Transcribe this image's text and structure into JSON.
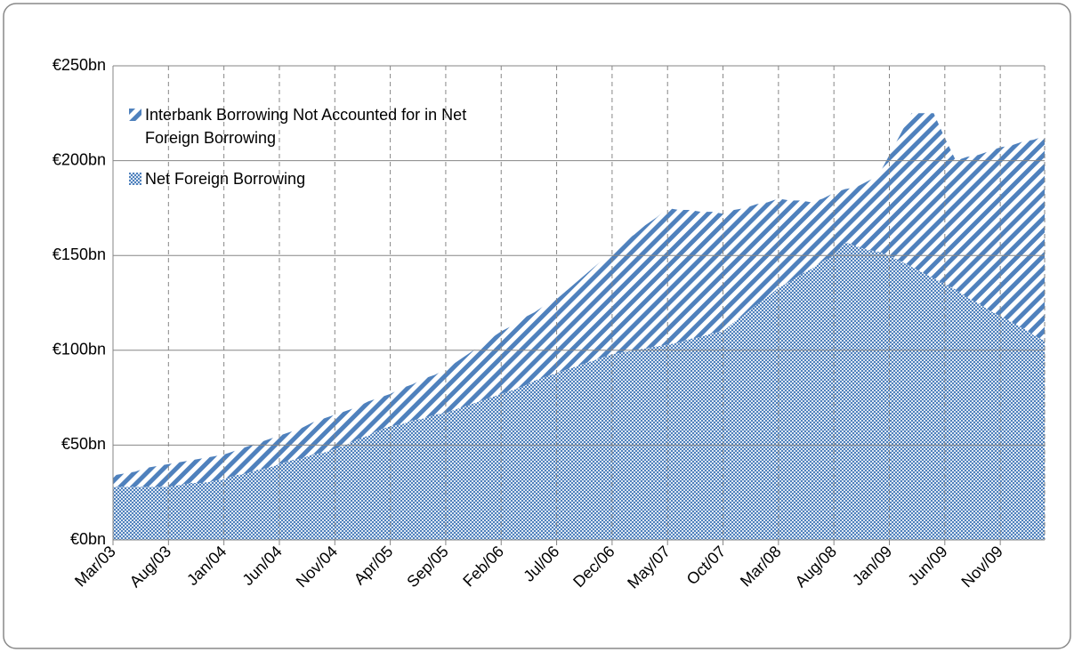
{
  "chart_data": {
    "type": "stacked-area",
    "categories": [
      "Mar/03",
      null,
      null,
      null,
      null,
      "Aug/03",
      null,
      null,
      null,
      null,
      "Jan/04",
      null,
      null,
      null,
      null,
      "Jun/04",
      null,
      null,
      null,
      null,
      "Nov/04",
      null,
      null,
      null,
      null,
      "Apr/05",
      null,
      null,
      null,
      null,
      "Sep/05",
      null,
      null,
      null,
      null,
      "Feb/06",
      null,
      null,
      null,
      null,
      "Jul/06",
      null,
      null,
      null,
      null,
      "Dec/06",
      null,
      null,
      null,
      null,
      "May/07",
      null,
      null,
      null,
      null,
      "Oct/07",
      null,
      null,
      null,
      null,
      "Mar/08",
      null,
      null,
      null,
      null,
      "Aug/08",
      null,
      null,
      null,
      null,
      "Jan/09",
      null,
      null,
      null,
      null,
      "Jun/09",
      null,
      null,
      null,
      null,
      "Nov/09",
      null,
      null,
      null,
      null
    ],
    "series": [
      {
        "name": "Net Foreign Borrowing",
        "color": "#4f81bd",
        "pattern": "dots",
        "values": [
          28,
          28,
          28,
          28,
          28,
          28,
          29,
          30,
          30,
          31,
          32,
          34,
          35,
          37,
          38,
          40,
          42,
          43,
          45,
          46,
          48,
          50,
          53,
          55,
          58,
          60,
          61,
          63,
          64,
          66,
          67,
          69,
          71,
          73,
          75,
          77,
          79,
          81,
          84,
          86,
          88,
          90,
          92,
          94,
          96,
          98,
          99,
          100,
          101,
          102,
          103,
          104,
          106,
          107,
          109,
          110,
          115,
          119,
          124,
          128,
          133,
          136,
          140,
          143,
          147,
          150,
          157,
          155,
          153,
          152,
          150,
          147,
          144,
          141,
          138,
          135,
          132,
          128,
          125,
          121,
          118,
          115,
          112,
          108,
          105
        ]
      },
      {
        "name": "Interbank Borrowing Not Accounted for in Net Foreign Borrowing",
        "color": "#4f81bd",
        "pattern": "stripes",
        "values": [
          6,
          7,
          8,
          10,
          11,
          12,
          12,
          12,
          13,
          13,
          13,
          13,
          14,
          14,
          15,
          15,
          15,
          16,
          17,
          18,
          18,
          18,
          17,
          18,
          17,
          17,
          19,
          19,
          21,
          21,
          23,
          25,
          27,
          29,
          31,
          33,
          34,
          36,
          36,
          38,
          39,
          42,
          45,
          48,
          51,
          54,
          58,
          61,
          65,
          68,
          72,
          70,
          68,
          66,
          64,
          62,
          59,
          56,
          53,
          50,
          47,
          43,
          39,
          35,
          33,
          33,
          28,
          31,
          36,
          40,
          53,
          67,
          81,
          84,
          87,
          77,
          68,
          74,
          78,
          84,
          89,
          93,
          98,
          103,
          108
        ]
      }
    ],
    "ylim": [
      0,
      250
    ],
    "yticks": [
      {
        "value": 0,
        "label": "€0bn"
      },
      {
        "value": 50,
        "label": "€50bn"
      },
      {
        "value": 100,
        "label": "€100bn"
      },
      {
        "value": 150,
        "label": "€150bn"
      },
      {
        "value": 200,
        "label": "€200bn"
      },
      {
        "value": 250,
        "label": "€250bn"
      }
    ],
    "grid": true,
    "legend": "top-left"
  }
}
